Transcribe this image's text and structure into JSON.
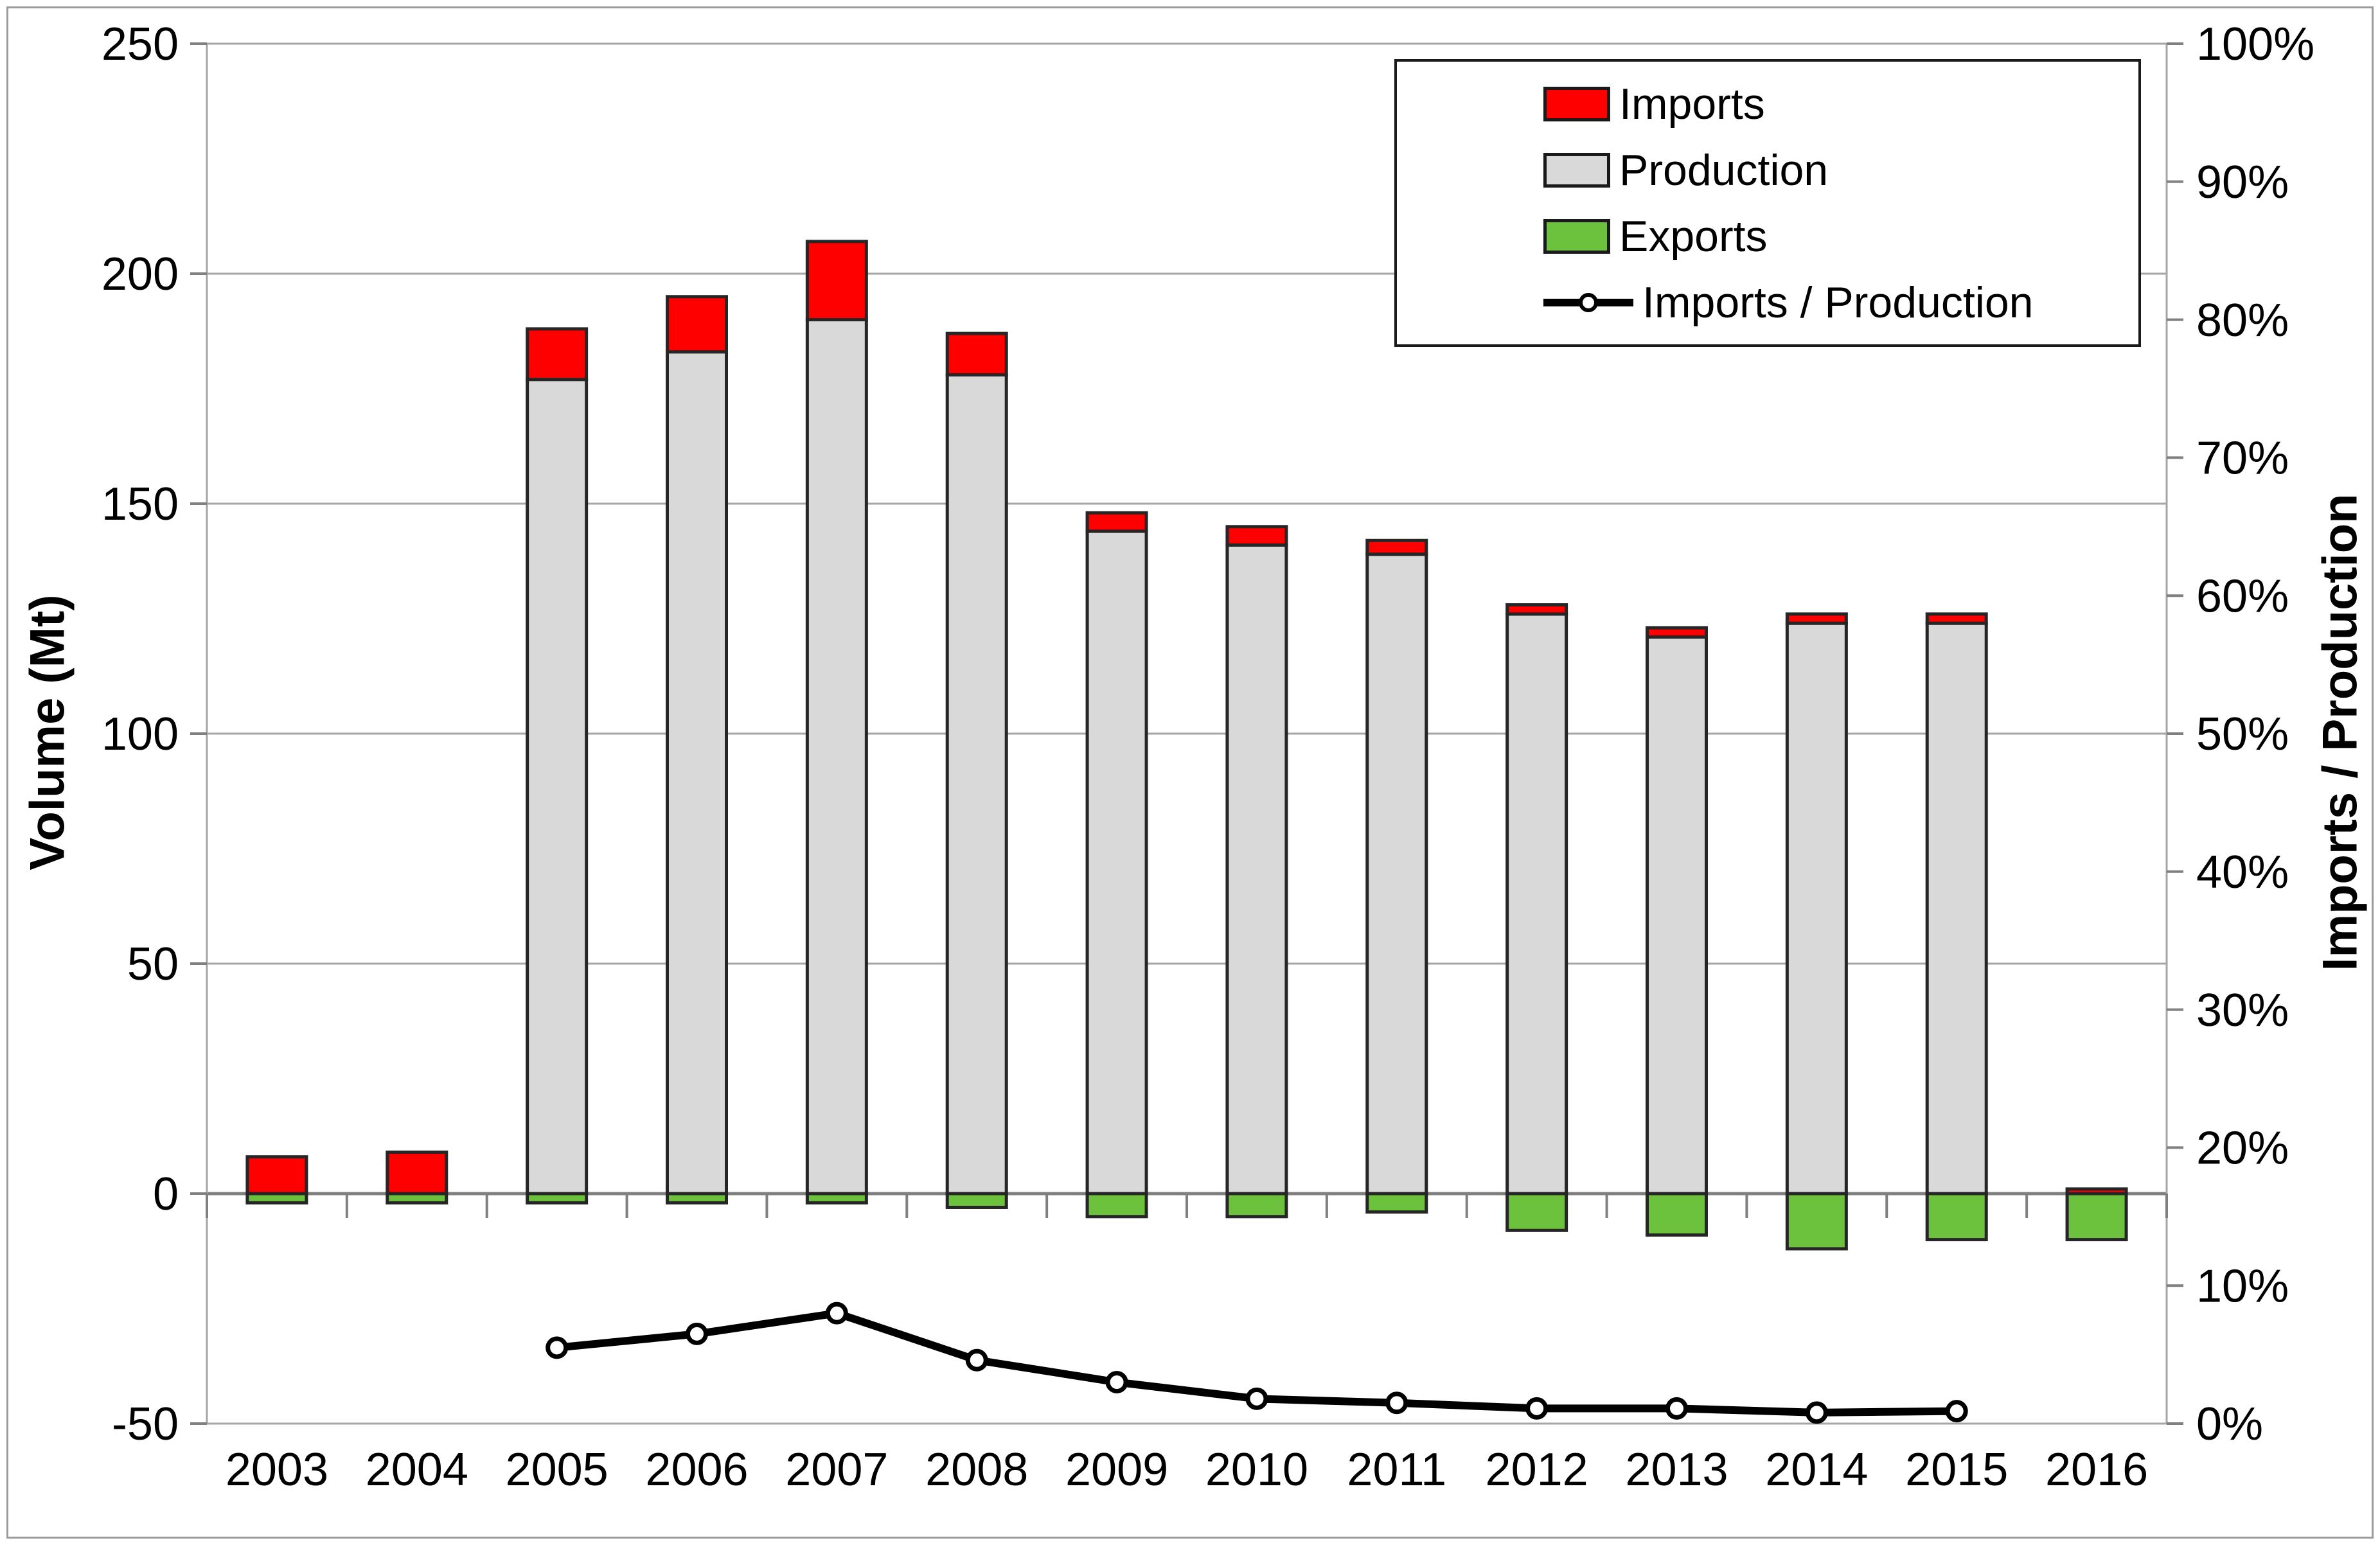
{
  "figure": {
    "background": "#FFFFFF",
    "frame_color": "#9A9A9A"
  },
  "chart_data": {
    "type": "bar",
    "subtype": "stacked-column-with-line",
    "categories": [
      "2003",
      "2004",
      "2005",
      "2006",
      "2007",
      "2008",
      "2009",
      "2010",
      "2011",
      "2012",
      "2013",
      "2014",
      "2015",
      "2016"
    ],
    "series": [
      {
        "name": "Imports",
        "type": "bar",
        "axis": "left",
        "color": "#FF0000",
        "values": [
          8,
          9,
          11,
          12,
          17,
          9,
          4,
          4,
          3,
          2,
          2,
          2,
          2,
          1
        ]
      },
      {
        "name": "Production",
        "type": "bar",
        "axis": "left",
        "color": "#D9D9D9",
        "values": [
          0,
          0,
          177,
          183,
          190,
          178,
          144,
          141,
          139,
          126,
          121,
          124,
          124,
          0
        ]
      },
      {
        "name": "Exports",
        "type": "bar",
        "axis": "left",
        "color": "#6CC23C",
        "values": [
          -2,
          -2,
          -2,
          -2,
          -2,
          -3,
          -5,
          -5,
          -4,
          -8,
          -9,
          -12,
          -10,
          -10
        ]
      },
      {
        "name": "Imports / Production",
        "type": "line",
        "axis": "right",
        "color": "#000000",
        "marker": "open-circle-white",
        "values": [
          null,
          null,
          5.5,
          6.5,
          8.0,
          4.6,
          3.0,
          1.8,
          1.5,
          1.1,
          1.1,
          0.8,
          0.9,
          null
        ]
      }
    ],
    "left_axis": {
      "title": "Volume (Mt)",
      "min": -50,
      "max": 250,
      "tick_step": 50,
      "tick_labels": [
        "250",
        "200",
        "150",
        "100",
        "50",
        "0",
        "-50"
      ],
      "tick_values": [
        250,
        200,
        150,
        100,
        50,
        0,
        -50
      ]
    },
    "right_axis": {
      "title": "Imports / Production",
      "min": 0,
      "max": 100,
      "tick_step": 10,
      "tick_labels": [
        "100%",
        "90%",
        "80%",
        "70%",
        "60%",
        "50%",
        "40%",
        "30%",
        "20%",
        "10%",
        "0%"
      ],
      "tick_values": [
        100,
        90,
        80,
        70,
        60,
        50,
        40,
        30,
        20,
        10,
        0
      ]
    },
    "grid": true,
    "legend_position": "top-right",
    "colors": {
      "gridline": "#A6A6A6",
      "zero_line": "#808080",
      "plot_border": "#A6A6A6",
      "bar_border": "#262626",
      "text": "#000000"
    }
  },
  "legend": {
    "items": [
      {
        "label": "Imports",
        "swatch": "red-rect"
      },
      {
        "label": "Production",
        "swatch": "gray-rect"
      },
      {
        "label": "Exports",
        "swatch": "green-rect"
      },
      {
        "label": "Imports / Production",
        "swatch": "black-line-open-circle"
      }
    ]
  }
}
